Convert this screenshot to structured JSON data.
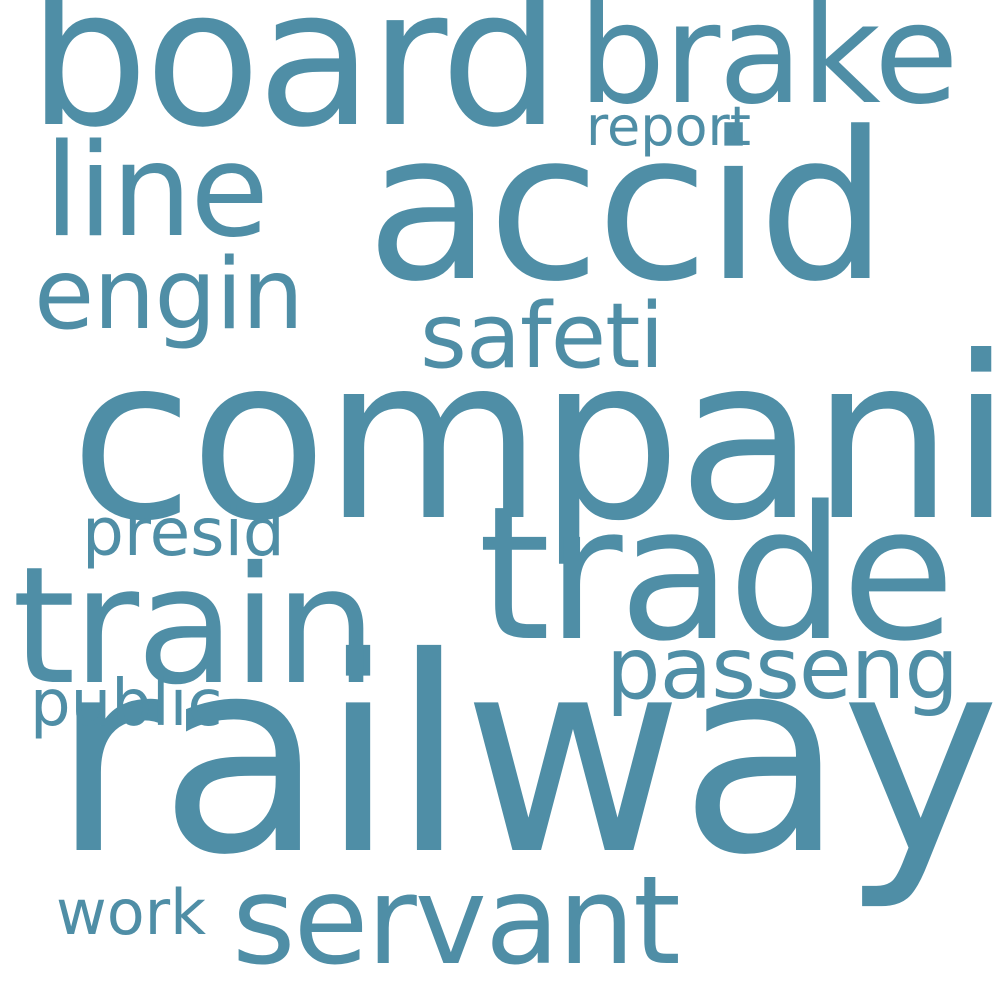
{
  "colors": {
    "word": "#4f8ea6",
    "background": "#ffffff"
  },
  "words": [
    {
      "text": "railway",
      "weight": 1.0
    },
    {
      "text": "compani",
      "weight": 0.83
    },
    {
      "text": "accid",
      "weight": 0.75
    },
    {
      "text": "board",
      "weight": 0.7
    },
    {
      "text": "trade",
      "weight": 0.68
    },
    {
      "text": "train",
      "weight": 0.6
    },
    {
      "text": "brake",
      "weight": 0.5
    },
    {
      "text": "line",
      "weight": 0.45
    },
    {
      "text": "servant",
      "weight": 0.45
    },
    {
      "text": "engin",
      "weight": 0.35
    },
    {
      "text": "safeti",
      "weight": 0.35
    },
    {
      "text": "passeng",
      "weight": 0.35
    },
    {
      "text": "presid",
      "weight": 0.25
    },
    {
      "text": "public",
      "weight": 0.25
    },
    {
      "text": "work",
      "weight": 0.25
    },
    {
      "text": "report",
      "weight": 0.2
    }
  ]
}
